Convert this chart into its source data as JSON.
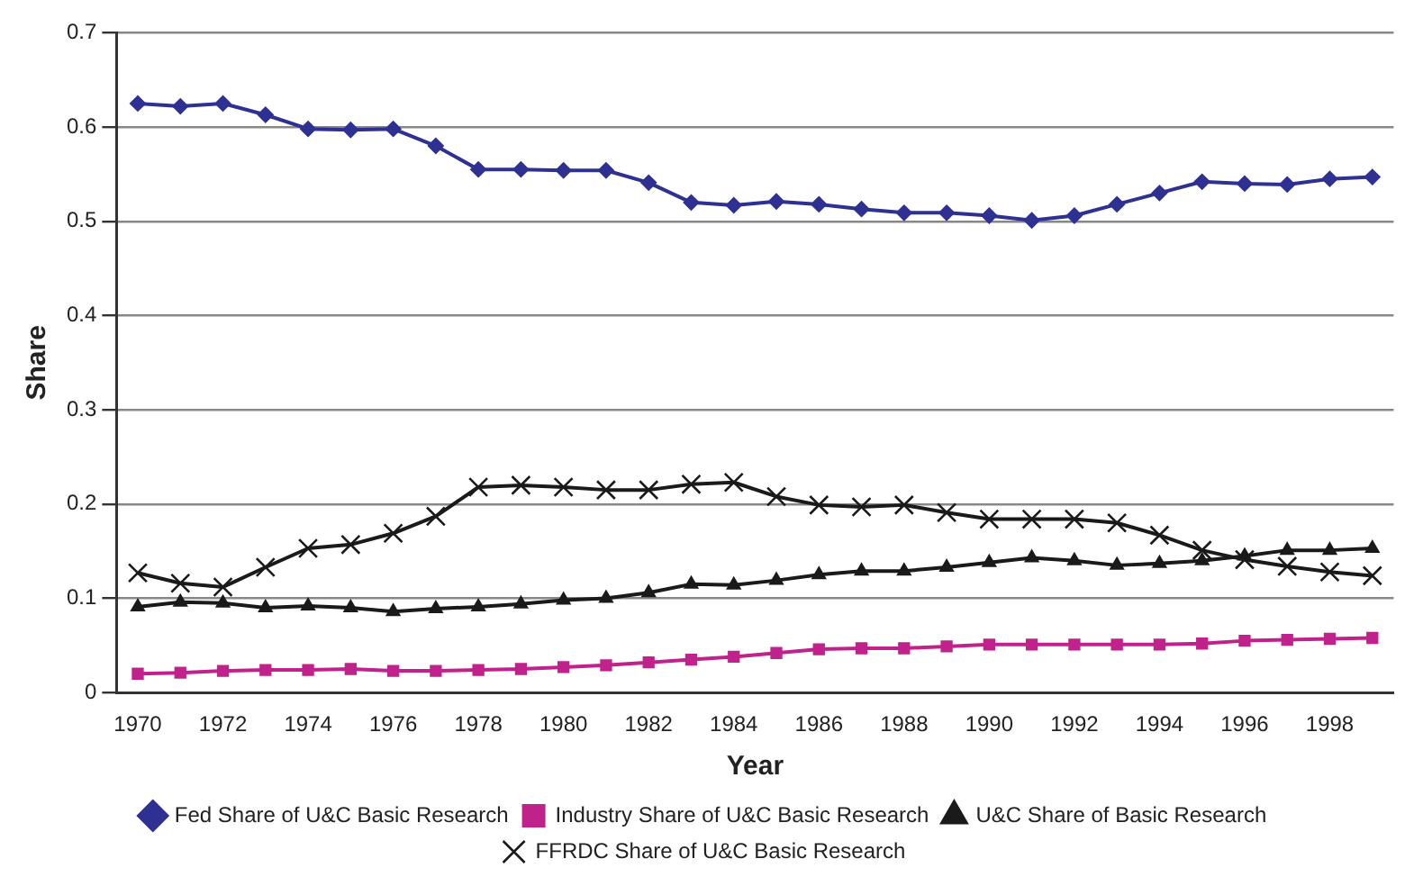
{
  "chart_data": {
    "type": "line",
    "xlabel": "Year",
    "ylabel": "Share",
    "x": [
      1970,
      1971,
      1972,
      1973,
      1974,
      1975,
      1976,
      1977,
      1978,
      1979,
      1980,
      1981,
      1982,
      1983,
      1984,
      1985,
      1986,
      1987,
      1988,
      1989,
      1990,
      1991,
      1992,
      1993,
      1994,
      1995,
      1996,
      1997,
      1998,
      1999
    ],
    "xlim": [
      1969.5,
      1999.5
    ],
    "xticks": [
      1970,
      1972,
      1974,
      1976,
      1978,
      1980,
      1982,
      1984,
      1986,
      1988,
      1990,
      1992,
      1994,
      1996,
      1998
    ],
    "ylim": [
      0,
      0.7
    ],
    "yticks": [
      0,
      0.1,
      0.2,
      0.3,
      0.4,
      0.5,
      0.6,
      0.7
    ],
    "grid": "y",
    "legend": "bottom",
    "line_style": "solid",
    "series": [
      {
        "name": "Fed Share of U&C Basic Research",
        "color": "#2e3192",
        "marker": "diamond",
        "values": [
          0.625,
          0.622,
          0.625,
          0.613,
          0.598,
          0.597,
          0.598,
          0.58,
          0.555,
          0.555,
          0.554,
          0.554,
          0.541,
          0.52,
          0.517,
          0.521,
          0.518,
          0.513,
          0.509,
          0.509,
          0.506,
          0.501,
          0.506,
          0.518,
          0.53,
          0.542,
          0.54,
          0.539,
          0.545,
          0.547
        ]
      },
      {
        "name": "Industry Share of U&C Basic Research",
        "color": "#c0228b",
        "marker": "square",
        "values": [
          0.02,
          0.021,
          0.023,
          0.024,
          0.024,
          0.025,
          0.023,
          0.023,
          0.024,
          0.025,
          0.027,
          0.029,
          0.032,
          0.035,
          0.038,
          0.042,
          0.046,
          0.047,
          0.047,
          0.049,
          0.051,
          0.051,
          0.051,
          0.051,
          0.051,
          0.052,
          0.055,
          0.056,
          0.057,
          0.058
        ]
      },
      {
        "name": "U&C Share of Basic Research",
        "color": "#1a1a1a",
        "marker": "triangle",
        "values": [
          0.091,
          0.096,
          0.095,
          0.09,
          0.092,
          0.09,
          0.086,
          0.089,
          0.091,
          0.094,
          0.098,
          0.1,
          0.106,
          0.115,
          0.114,
          0.119,
          0.125,
          0.129,
          0.129,
          0.133,
          0.138,
          0.143,
          0.14,
          0.135,
          0.137,
          0.14,
          0.145,
          0.151,
          0.151,
          0.153
        ]
      },
      {
        "name": "FFRDC Share of U&C Basic Research",
        "color": "#1a1a1a",
        "marker": "cross",
        "values": [
          0.127,
          0.116,
          0.112,
          0.133,
          0.153,
          0.157,
          0.169,
          0.187,
          0.218,
          0.22,
          0.218,
          0.215,
          0.215,
          0.221,
          0.223,
          0.208,
          0.199,
          0.197,
          0.199,
          0.191,
          0.184,
          0.184,
          0.184,
          0.18,
          0.167,
          0.151,
          0.141,
          0.134,
          0.128,
          0.124
        ]
      }
    ]
  }
}
